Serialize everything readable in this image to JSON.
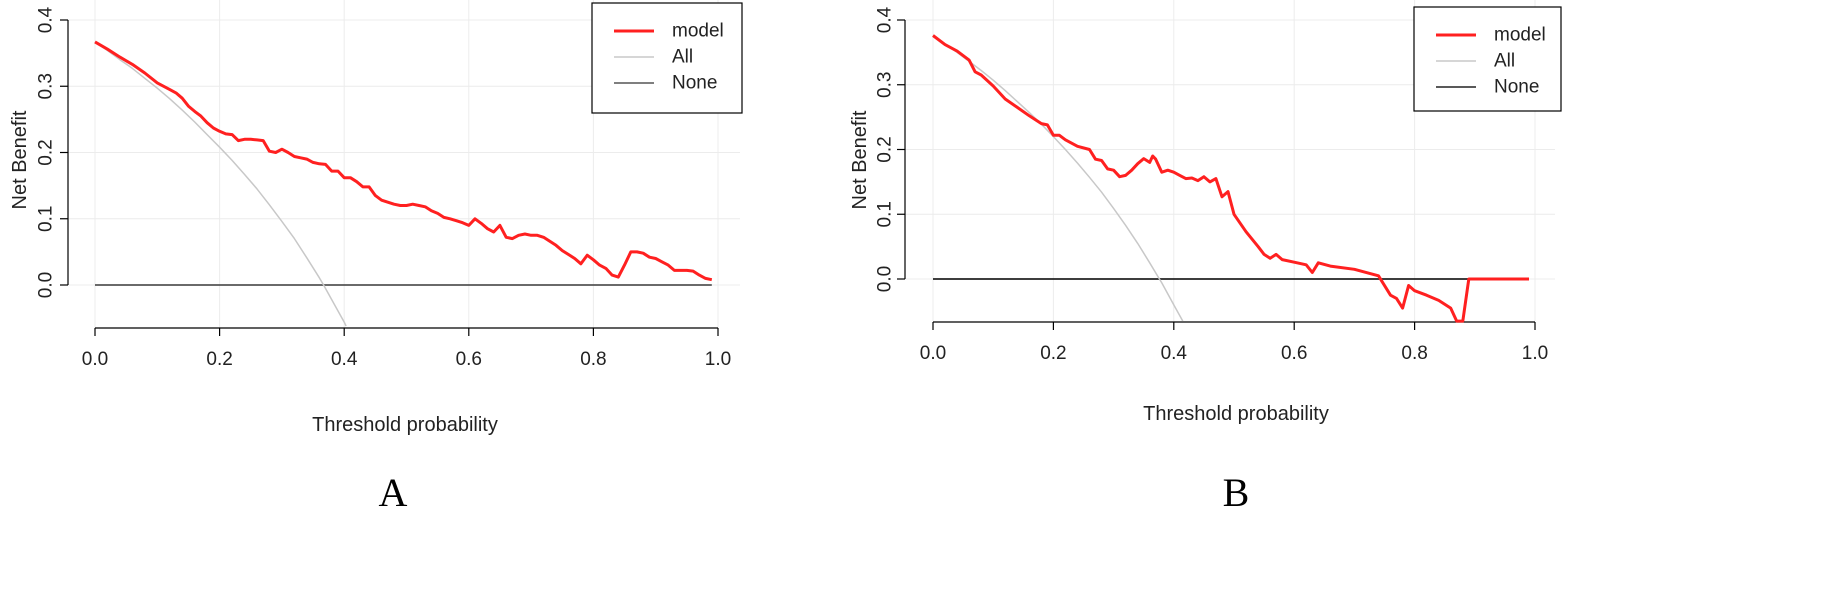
{
  "chart_data": [
    {
      "type": "line",
      "panel_label": "A",
      "xlabel": "Threshold probability",
      "ylabel": "Net Benefit",
      "xlim": [
        0,
        1
      ],
      "ylim": [
        -0.065,
        0.4
      ],
      "x_ticks": [
        "0.0",
        "0.2",
        "0.4",
        "0.6",
        "0.8",
        "1.0"
      ],
      "y_ticks": [
        "0.0",
        "0.1",
        "0.2",
        "0.3",
        "0.4"
      ],
      "grid": true,
      "legend_position": "top-right",
      "legend": [
        "model",
        "All",
        "None"
      ],
      "series": [
        {
          "name": "model",
          "color": "#ff2020",
          "x": [
            0.0,
            0.02,
            0.04,
            0.06,
            0.08,
            0.1,
            0.12,
            0.13,
            0.14,
            0.15,
            0.16,
            0.17,
            0.18,
            0.19,
            0.2,
            0.21,
            0.22,
            0.23,
            0.24,
            0.25,
            0.26,
            0.27,
            0.28,
            0.29,
            0.3,
            0.31,
            0.32,
            0.33,
            0.34,
            0.35,
            0.36,
            0.37,
            0.38,
            0.39,
            0.4,
            0.41,
            0.42,
            0.43,
            0.44,
            0.45,
            0.46,
            0.47,
            0.48,
            0.49,
            0.5,
            0.51,
            0.52,
            0.53,
            0.54,
            0.55,
            0.56,
            0.57,
            0.58,
            0.59,
            0.6,
            0.61,
            0.62,
            0.63,
            0.64,
            0.65,
            0.66,
            0.67,
            0.68,
            0.69,
            0.7,
            0.71,
            0.72,
            0.73,
            0.74,
            0.75,
            0.76,
            0.77,
            0.78,
            0.79,
            0.8,
            0.81,
            0.82,
            0.83,
            0.84,
            0.85,
            0.86,
            0.87,
            0.88,
            0.89,
            0.9,
            0.91,
            0.92,
            0.93,
            0.94,
            0.95,
            0.96,
            0.97,
            0.98,
            0.99
          ],
          "values": [
            0.367,
            0.356,
            0.344,
            0.333,
            0.32,
            0.305,
            0.295,
            0.29,
            0.282,
            0.27,
            0.262,
            0.255,
            0.245,
            0.237,
            0.232,
            0.228,
            0.227,
            0.218,
            0.22,
            0.22,
            0.219,
            0.218,
            0.202,
            0.2,
            0.205,
            0.2,
            0.194,
            0.192,
            0.19,
            0.185,
            0.183,
            0.182,
            0.172,
            0.172,
            0.162,
            0.162,
            0.156,
            0.148,
            0.148,
            0.135,
            0.128,
            0.125,
            0.122,
            0.12,
            0.12,
            0.122,
            0.12,
            0.118,
            0.112,
            0.108,
            0.102,
            0.1,
            0.097,
            0.094,
            0.09,
            0.1,
            0.093,
            0.085,
            0.08,
            0.09,
            0.072,
            0.07,
            0.075,
            0.077,
            0.075,
            0.075,
            0.072,
            0.066,
            0.06,
            0.052,
            0.046,
            0.04,
            0.032,
            0.045,
            0.038,
            0.03,
            0.025,
            0.015,
            0.012,
            0.03,
            0.05,
            0.05,
            0.048,
            0.042,
            0.04,
            0.035,
            0.03,
            0.022,
            0.022,
            0.022,
            0.021,
            0.015,
            0.01,
            0.008
          ]
        },
        {
          "name": "All",
          "color": "#c8c8c8",
          "x": [
            0.0,
            0.02,
            0.04,
            0.06,
            0.08,
            0.1,
            0.12,
            0.14,
            0.16,
            0.18,
            0.2,
            0.22,
            0.24,
            0.26,
            0.28,
            0.3,
            0.32,
            0.34,
            0.36,
            0.367,
            0.38,
            0.4,
            0.403
          ],
          "values": [
            0.367,
            0.354,
            0.34,
            0.327,
            0.312,
            0.297,
            0.281,
            0.264,
            0.246,
            0.227,
            0.208,
            0.188,
            0.167,
            0.145,
            0.121,
            0.096,
            0.07,
            0.041,
            0.011,
            0.0,
            -0.022,
            -0.056,
            -0.062
          ]
        },
        {
          "name": "None",
          "color": "#555555",
          "x": [
            0,
            0.99
          ],
          "values": [
            0,
            0
          ]
        }
      ]
    },
    {
      "type": "line",
      "panel_label": "B",
      "xlabel": "Threshold probability",
      "ylabel": "Net Benefit",
      "xlim": [
        0,
        1
      ],
      "ylim": [
        -0.065,
        0.4
      ],
      "x_ticks": [
        "0.0",
        "0.2",
        "0.4",
        "0.6",
        "0.8",
        "1.0"
      ],
      "y_ticks": [
        "0.0",
        "0.1",
        "0.2",
        "0.3",
        "0.4"
      ],
      "grid": true,
      "legend_position": "top-right",
      "legend": [
        "model",
        "All",
        "None"
      ],
      "series": [
        {
          "name": "model",
          "color": "#ff2020",
          "x": [
            0.0,
            0.02,
            0.04,
            0.06,
            0.07,
            0.08,
            0.1,
            0.12,
            0.14,
            0.16,
            0.18,
            0.19,
            0.2,
            0.21,
            0.22,
            0.24,
            0.26,
            0.27,
            0.28,
            0.29,
            0.3,
            0.31,
            0.32,
            0.33,
            0.34,
            0.35,
            0.36,
            0.365,
            0.37,
            0.38,
            0.39,
            0.4,
            0.41,
            0.42,
            0.43,
            0.44,
            0.45,
            0.46,
            0.47,
            0.48,
            0.49,
            0.5,
            0.52,
            0.54,
            0.55,
            0.56,
            0.57,
            0.58,
            0.6,
            0.62,
            0.63,
            0.64,
            0.66,
            0.7,
            0.74,
            0.76,
            0.77,
            0.78,
            0.79,
            0.8,
            0.82,
            0.84,
            0.86,
            0.87,
            0.88,
            0.89,
            0.9,
            0.99
          ],
          "values": [
            0.376,
            0.362,
            0.352,
            0.338,
            0.32,
            0.315,
            0.298,
            0.278,
            0.265,
            0.252,
            0.24,
            0.238,
            0.222,
            0.222,
            0.215,
            0.205,
            0.2,
            0.185,
            0.183,
            0.17,
            0.168,
            0.158,
            0.16,
            0.168,
            0.178,
            0.186,
            0.18,
            0.19,
            0.185,
            0.165,
            0.168,
            0.165,
            0.16,
            0.155,
            0.156,
            0.152,
            0.158,
            0.15,
            0.155,
            0.127,
            0.135,
            0.1,
            0.073,
            0.05,
            0.038,
            0.032,
            0.038,
            0.03,
            0.026,
            0.022,
            0.01,
            0.025,
            0.02,
            0.015,
            0.005,
            -0.025,
            -0.03,
            -0.045,
            -0.01,
            -0.018,
            -0.025,
            -0.033,
            -0.045,
            -0.065,
            -0.065,
            0.0,
            0.0,
            0.0
          ]
        },
        {
          "name": "All",
          "color": "#c8c8c8",
          "x": [
            0.0,
            0.02,
            0.04,
            0.06,
            0.08,
            0.1,
            0.12,
            0.14,
            0.16,
            0.18,
            0.2,
            0.22,
            0.24,
            0.26,
            0.28,
            0.3,
            0.32,
            0.34,
            0.36,
            0.376,
            0.38,
            0.4,
            0.415
          ],
          "values": [
            0.376,
            0.363,
            0.35,
            0.336,
            0.322,
            0.307,
            0.291,
            0.274,
            0.257,
            0.239,
            0.22,
            0.2,
            0.179,
            0.157,
            0.134,
            0.109,
            0.083,
            0.055,
            0.025,
            0.0,
            -0.006,
            -0.04,
            -0.065
          ]
        },
        {
          "name": "None",
          "color": "#222222",
          "x": [
            0,
            0.99
          ],
          "values": [
            0,
            0
          ]
        }
      ]
    }
  ]
}
